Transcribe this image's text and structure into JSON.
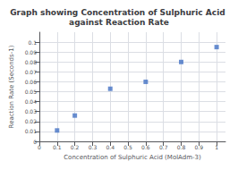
{
  "chart_data": {
    "type": "scatter",
    "title": "Graph showing Concentration of Sulphuric Acid against Reaction Rate",
    "xlabel": "Concentration of Sulphuric Acid (MolAdm-3)",
    "ylabel": "Reaction Rate (Seconds-1)",
    "x": [
      0.1,
      0.2,
      0.4,
      0.6,
      0.8,
      1.0
    ],
    "values": [
      0.011,
      0.026,
      0.053,
      0.06,
      0.08,
      0.095
    ],
    "color": "#4472c4",
    "marker": "square",
    "xlim": [
      0,
      1.05
    ],
    "ylim": [
      0,
      0.11
    ],
    "xticks": [
      0,
      0.1,
      0.2,
      0.3,
      0.4,
      0.5,
      0.6,
      0.7,
      0.8,
      0.9,
      1.0
    ],
    "yticks": [
      0,
      0.01,
      0.02,
      0.03,
      0.04,
      0.05,
      0.06,
      0.07,
      0.08,
      0.09,
      0.1
    ],
    "grid": true
  }
}
